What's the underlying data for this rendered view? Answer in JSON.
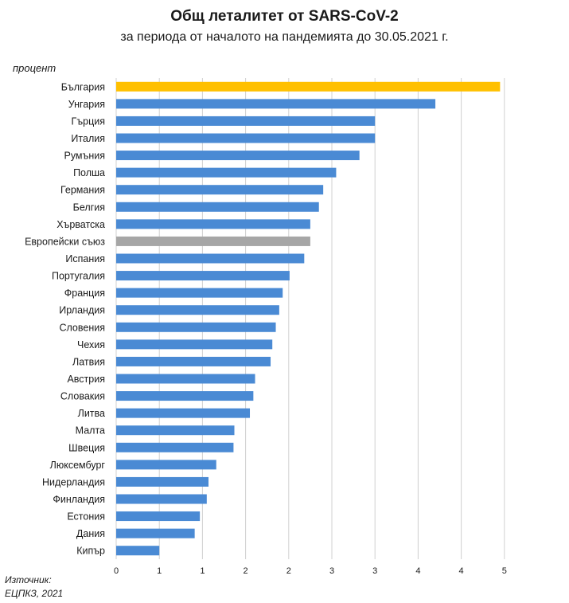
{
  "colors": {
    "bar_default": "#4a8ad4",
    "bar_highlight": "#ffc000",
    "bar_eu": "#a6a6a6",
    "grid": "#d0d0d0"
  },
  "chart_data": {
    "type": "bar",
    "orientation": "horizontal",
    "title": "Общ леталитет от SARS-CoV-2",
    "subtitle": "за периода от началото на пандемията до 30.05.2021 г.",
    "ylabel": "процент",
    "xlim": [
      0,
      5
    ],
    "xticks": [
      "0",
      "1",
      "1",
      "2",
      "2",
      "3",
      "3",
      "4",
      "4",
      "5"
    ],
    "xtick_values": [
      0,
      0.5,
      1,
      1.5,
      2,
      2.5,
      3,
      3.5,
      4,
      4.5
    ],
    "grid": true,
    "legend": "none",
    "categories": [
      "България",
      "Унгария",
      "Гърция",
      "Италия",
      "Румъния",
      "Полша",
      "Германия",
      "Белгия",
      "Хърватска",
      "Европейски съюз",
      "Испания",
      "Португалия",
      "Франция",
      "Ирландия",
      "Словения",
      "Чехия",
      "Латвия",
      "Австрия",
      "Словакия",
      "Литва",
      "Малта",
      "Швеция",
      "Люксембург",
      "Нидерландия",
      "Финландия",
      "Естония",
      "Дания",
      "Кипър"
    ],
    "values": [
      4.45,
      3.7,
      3.0,
      3.0,
      2.82,
      2.55,
      2.4,
      2.35,
      2.25,
      2.25,
      2.18,
      2.01,
      1.93,
      1.89,
      1.85,
      1.81,
      1.79,
      1.61,
      1.59,
      1.55,
      1.37,
      1.36,
      1.16,
      1.07,
      1.05,
      0.97,
      0.91,
      0.5
    ],
    "highlight": {
      "България": "bar_highlight",
      "Европейски съюз": "bar_eu"
    }
  },
  "source": {
    "line1": "Източник:",
    "line2": "ЕЦПКЗ, 2021"
  }
}
